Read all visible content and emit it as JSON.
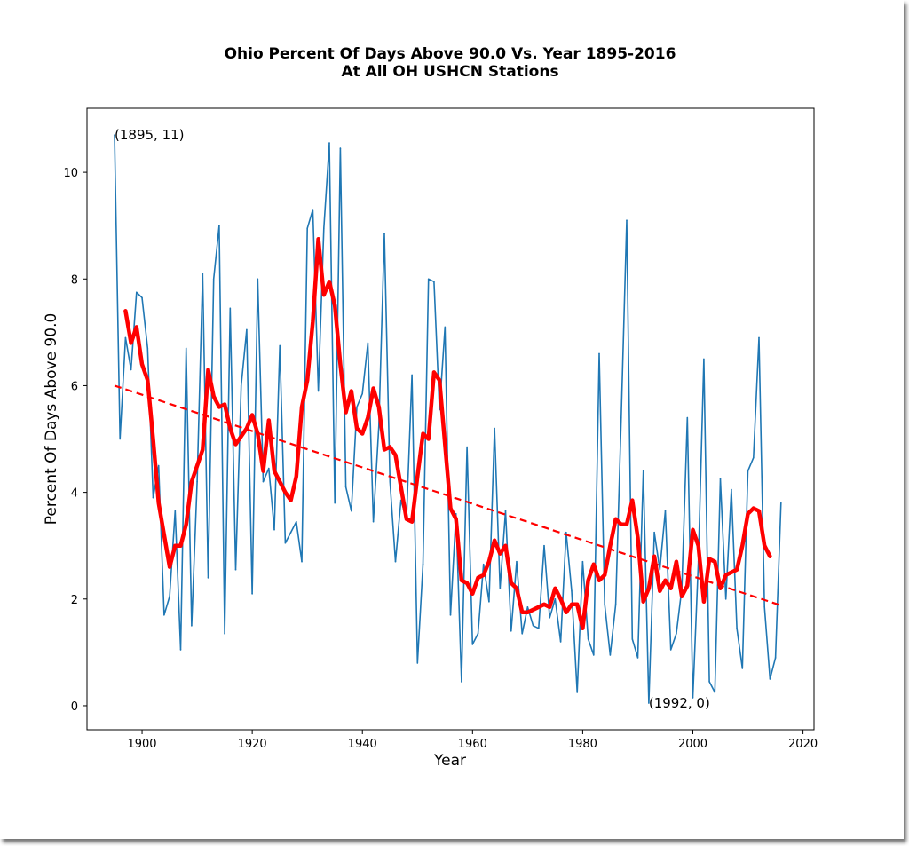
{
  "chart_data": {
    "type": "line",
    "title_line1": "Ohio Percent Of Days Above 90.0 Vs. Year 1895-2016",
    "title_line2": "At All OH USHCN Stations",
    "xlabel": "Year",
    "ylabel": "Percent Of Days Above 90.0",
    "xlim": [
      1890,
      2022
    ],
    "ylim": [
      -0.45,
      11.2
    ],
    "xticks": [
      1900,
      1920,
      1940,
      1960,
      1980,
      2000,
      2020
    ],
    "yticks": [
      0,
      2,
      4,
      6,
      8,
      10
    ],
    "grid": false,
    "annotations": [
      {
        "text": "(1895, 11)",
        "x": 1895,
        "y": 10.7
      },
      {
        "text": "(1992, 0)",
        "x": 1992,
        "y": 0.05
      }
    ],
    "series": [
      {
        "style": "annual",
        "color": "#1f77b4",
        "x": [
          1895,
          1896,
          1897,
          1898,
          1899,
          1900,
          1901,
          1902,
          1903,
          1904,
          1905,
          1906,
          1907,
          1908,
          1909,
          1910,
          1911,
          1912,
          1913,
          1914,
          1915,
          1916,
          1917,
          1918,
          1919,
          1920,
          1921,
          1922,
          1923,
          1924,
          1925,
          1926,
          1927,
          1928,
          1929,
          1930,
          1931,
          1932,
          1933,
          1934,
          1935,
          1936,
          1937,
          1938,
          1939,
          1940,
          1941,
          1942,
          1943,
          1944,
          1945,
          1946,
          1947,
          1948,
          1949,
          1950,
          1951,
          1952,
          1953,
          1954,
          1955,
          1956,
          1957,
          1958,
          1959,
          1960,
          1961,
          1962,
          1963,
          1964,
          1965,
          1966,
          1967,
          1968,
          1969,
          1970,
          1971,
          1972,
          1973,
          1974,
          1975,
          1976,
          1977,
          1978,
          1979,
          1980,
          1981,
          1982,
          1983,
          1984,
          1985,
          1986,
          1987,
          1988,
          1989,
          1990,
          1991,
          1992,
          1993,
          1994,
          1995,
          1996,
          1997,
          1998,
          1999,
          2000,
          2001,
          2002,
          2003,
          2004,
          2005,
          2006,
          2007,
          2008,
          2009,
          2010,
          2011,
          2012,
          2013,
          2014,
          2015,
          2016
        ],
        "y": [
          10.7,
          5.0,
          6.9,
          6.3,
          7.75,
          7.65,
          6.7,
          3.9,
          4.5,
          1.7,
          2.05,
          3.65,
          1.05,
          6.7,
          1.5,
          4.2,
          8.1,
          2.4,
          8.0,
          9.0,
          1.35,
          7.45,
          2.55,
          6.0,
          7.05,
          2.1,
          8.0,
          4.2,
          4.45,
          3.3,
          6.75,
          3.05,
          3.25,
          3.45,
          2.7,
          8.95,
          9.3,
          5.9,
          8.95,
          10.55,
          3.8,
          10.45,
          4.1,
          3.65,
          5.6,
          5.85,
          6.8,
          3.45,
          5.25,
          8.85,
          4.2,
          2.7,
          3.85,
          3.5,
          6.2,
          0.8,
          2.65,
          8.0,
          7.95,
          5.55,
          7.1,
          1.7,
          3.6,
          0.45,
          4.85,
          1.15,
          1.35,
          2.65,
          1.95,
          5.2,
          2.2,
          3.65,
          1.4,
          2.7,
          1.35,
          1.85,
          1.5,
          1.45,
          3.0,
          1.65,
          2.0,
          1.2,
          3.25,
          2.15,
          0.25,
          2.7,
          1.25,
          0.95,
          6.6,
          1.9,
          0.95,
          1.9,
          5.4,
          9.1,
          1.25,
          0.9,
          4.4,
          0.05,
          3.25,
          2.55,
          3.65,
          1.05,
          1.35,
          2.2,
          5.4,
          0.15,
          2.7,
          6.5,
          0.45,
          0.25,
          4.25,
          2.0,
          4.05,
          1.45,
          0.7,
          4.4,
          4.65,
          6.9,
          1.85,
          0.5,
          0.9,
          3.8
        ]
      },
      {
        "style": "moving-average",
        "color": "#ff0000",
        "x": [
          1897,
          1898,
          1899,
          1900,
          1901,
          1902,
          1903,
          1904,
          1905,
          1906,
          1907,
          1908,
          1909,
          1910,
          1911,
          1912,
          1913,
          1914,
          1915,
          1916,
          1917,
          1918,
          1919,
          1920,
          1921,
          1922,
          1923,
          1924,
          1925,
          1926,
          1927,
          1928,
          1929,
          1930,
          1931,
          1932,
          1933,
          1934,
          1935,
          1936,
          1937,
          1938,
          1939,
          1940,
          1941,
          1942,
          1943,
          1944,
          1945,
          1946,
          1947,
          1948,
          1949,
          1950,
          1951,
          1952,
          1953,
          1954,
          1955,
          1956,
          1957,
          1958,
          1959,
          1960,
          1961,
          1962,
          1963,
          1964,
          1965,
          1966,
          1967,
          1968,
          1969,
          1970,
          1971,
          1972,
          1973,
          1974,
          1975,
          1976,
          1977,
          1978,
          1979,
          1980,
          1981,
          1982,
          1983,
          1984,
          1985,
          1986,
          1987,
          1988,
          1989,
          1990,
          1991,
          1992,
          1993,
          1994,
          1995,
          1996,
          1997,
          1998,
          1999,
          2000,
          2001,
          2002,
          2003,
          2004,
          2005,
          2006,
          2007,
          2008,
          2009,
          2010,
          2011,
          2012,
          2013,
          2014
        ],
        "y": [
          7.4,
          6.8,
          7.1,
          6.4,
          6.1,
          5.0,
          3.8,
          3.2,
          2.6,
          3.0,
          3.0,
          3.4,
          4.2,
          4.5,
          4.8,
          6.3,
          5.8,
          5.6,
          5.65,
          5.2,
          4.9,
          5.05,
          5.2,
          5.45,
          5.1,
          4.4,
          5.35,
          4.4,
          4.2,
          4.0,
          3.85,
          4.3,
          5.6,
          6.1,
          7.2,
          8.75,
          7.7,
          7.95,
          7.5,
          6.4,
          5.5,
          5.9,
          5.2,
          5.1,
          5.4,
          5.95,
          5.6,
          4.8,
          4.85,
          4.7,
          4.1,
          3.5,
          3.45,
          4.3,
          5.1,
          5.0,
          6.25,
          6.1,
          4.9,
          3.7,
          3.5,
          2.35,
          2.3,
          2.1,
          2.4,
          2.45,
          2.7,
          3.1,
          2.85,
          3.0,
          2.3,
          2.2,
          1.75,
          1.75,
          1.8,
          1.85,
          1.9,
          1.85,
          2.2,
          2.0,
          1.75,
          1.9,
          1.9,
          1.45,
          2.35,
          2.65,
          2.35,
          2.45,
          3.0,
          3.5,
          3.4,
          3.4,
          3.85,
          3.15,
          1.95,
          2.2,
          2.8,
          2.15,
          2.35,
          2.2,
          2.7,
          2.05,
          2.25,
          3.3,
          3.0,
          1.95,
          2.75,
          2.7,
          2.2,
          2.45,
          2.5,
          2.55,
          3.0,
          3.6,
          3.7,
          3.65,
          3.0,
          2.8
        ]
      },
      {
        "style": "trend",
        "color": "#ff0000",
        "x": [
          1895,
          2016
        ],
        "y": [
          6.0,
          1.88
        ]
      }
    ]
  }
}
